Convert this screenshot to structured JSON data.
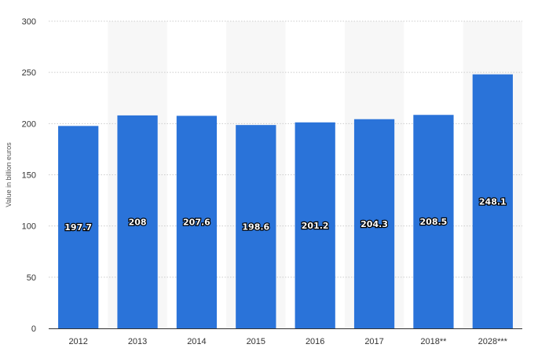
{
  "chart_data": {
    "type": "bar",
    "title": "",
    "xlabel": "",
    "ylabel": "Value in billion euros",
    "categories": [
      "2012",
      "2013",
      "2014",
      "2015",
      "2016",
      "2017",
      "2018**",
      "2028***"
    ],
    "values": [
      197.7,
      208,
      207.6,
      198.6,
      201.2,
      204.3,
      208.5,
      248.1
    ],
    "data_labels": [
      "197.7",
      "208",
      "207.6",
      "198.6",
      "201.2",
      "204.3",
      "208.5",
      "248.1"
    ],
    "ylim": [
      0,
      300
    ],
    "yticks": [
      0,
      50,
      100,
      150,
      200,
      250,
      300
    ],
    "grid": "horizontal dashed",
    "alternating_band_shading": true,
    "bar_color": "#2a73d9",
    "band_color": "#f7f7f7",
    "grid_color": "#cccccc"
  }
}
